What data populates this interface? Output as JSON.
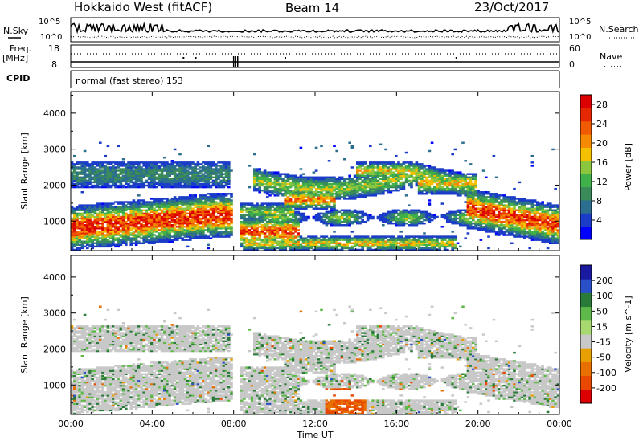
{
  "header": {
    "station": "Hokkaido West (fitACF)",
    "beam": "Beam 14",
    "date": "23/Oct/2017"
  },
  "noise_panel": {
    "left_label": "N.Sky",
    "right_label": "N.Search",
    "left_ticks": [
      "10^5",
      "10^0"
    ],
    "right_ticks": [
      "10^5",
      "10^0"
    ]
  },
  "freq_panel": {
    "left_label_1": "Freq.",
    "left_label_2": "[MHz]",
    "right_label": "Nave",
    "left_ticks": [
      "18",
      "8"
    ],
    "right_ticks": [
      "60",
      "0"
    ]
  },
  "cpid_panel": {
    "label": "CPID",
    "text": "normal (fast stereo) 153"
  },
  "colors": {
    "power": [
      "#0000ff",
      "#1a3cc8",
      "#2c6e8f",
      "#3a8a5a",
      "#3fb04a",
      "#8cc63f",
      "#f5c000",
      "#f58a00",
      "#f05a00",
      "#e62800",
      "#dd0000"
    ],
    "velocity": [
      "#1a1aa0",
      "#2a50c8",
      "#2a7a3a",
      "#5fb84a",
      "#a8d870",
      "#c8c8c8",
      "#e8a000",
      "#e87000",
      "#e84800",
      "#dd0000"
    ]
  },
  "chart_data": [
    {
      "type": "heatmap",
      "title": "Power",
      "xlabel": "",
      "ylabel": "Slant Range [km]",
      "x_ticks": [
        "00:00",
        "04:00",
        "08:00",
        "12:00",
        "16:00",
        "20:00",
        "00:00"
      ],
      "xlim": [
        0,
        24
      ],
      "y_ticks": [
        1000,
        2000,
        3000,
        4000
      ],
      "ylim": [
        180,
        4600
      ],
      "colorbar_label": "Power [dB]",
      "colorbar_ticks": [
        4,
        8,
        12,
        16,
        20,
        24,
        28
      ],
      "colorbar_range": [
        0,
        30
      ]
    },
    {
      "type": "heatmap",
      "title": "Velocity",
      "xlabel": "Time UT",
      "ylabel": "Slant Range [km]",
      "x_ticks": [
        "00:00",
        "04:00",
        "08:00",
        "12:00",
        "16:00",
        "20:00",
        "00:00"
      ],
      "xlim": [
        0,
        24
      ],
      "y_ticks": [
        1000,
        2000,
        3000,
        4000
      ],
      "ylim": [
        180,
        4600
      ],
      "colorbar_label": "Velocity [m s^-1]",
      "colorbar_ticks": [
        200,
        100,
        50,
        15,
        -15,
        -50,
        -100,
        -200
      ],
      "colorbar_range": [
        -250,
        250
      ]
    }
  ]
}
